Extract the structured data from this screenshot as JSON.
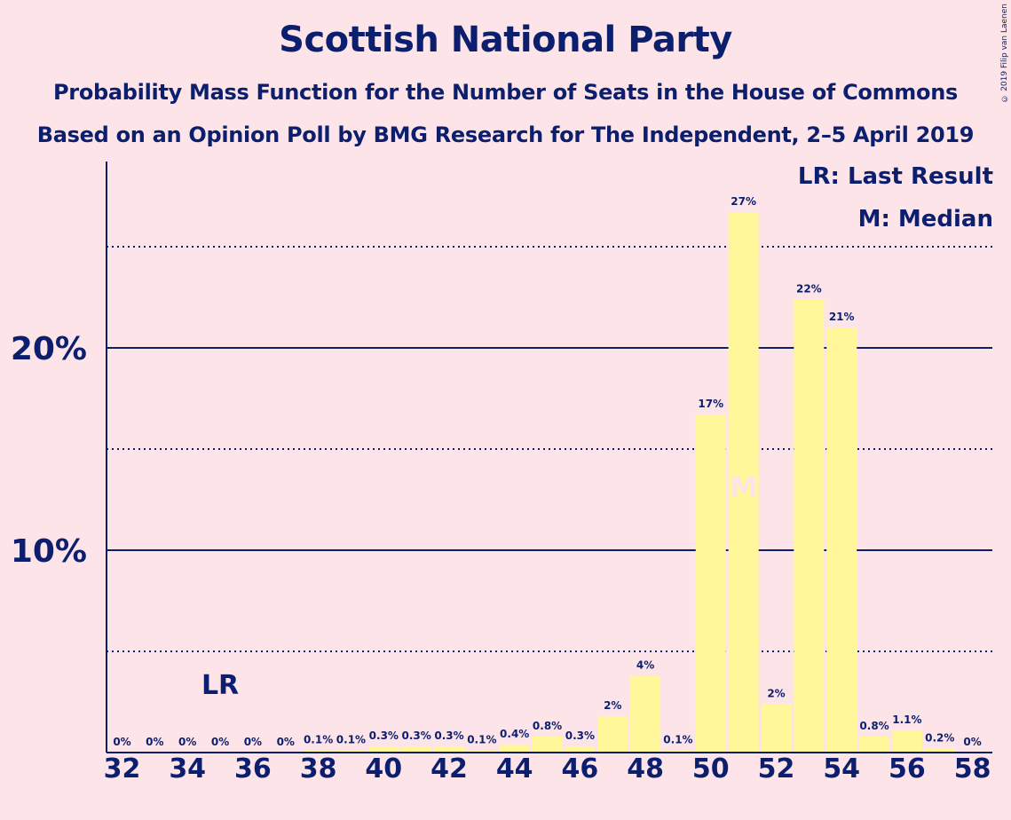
{
  "chart_data": {
    "type": "bar",
    "title": "Scottish National Party",
    "subtitle": "Probability Mass Function for the Number of Seats in the House of Commons",
    "subtitle2": "Based on an Opinion Poll by BMG Research for The Independent, 2–5 April 2019",
    "copyright": "© 2019 Filip van Laenen",
    "legend": [
      "LR: Last Result",
      "M: Median"
    ],
    "last_result": 35,
    "last_result_label": "LR",
    "median": 51,
    "median_label": "M",
    "x": [
      32,
      33,
      34,
      35,
      36,
      37,
      38,
      39,
      40,
      41,
      42,
      43,
      44,
      45,
      46,
      47,
      48,
      49,
      50,
      51,
      52,
      53,
      54,
      55,
      56,
      57,
      58
    ],
    "values": [
      0,
      0,
      0,
      0,
      0,
      0,
      0.1,
      0.1,
      0.3,
      0.3,
      0.3,
      0.1,
      0.4,
      0.8,
      0.3,
      1.8,
      3.8,
      0.1,
      16.7,
      26.7,
      2.4,
      22.4,
      21.0,
      0.8,
      1.1,
      0.2,
      0
    ],
    "data_labels": [
      "0%",
      "0%",
      "0%",
      "0%",
      "0%",
      "0%",
      "0.1%",
      "0.1%",
      "0.3%",
      "0.3%",
      "0.3%",
      "0.1%",
      "0.4%",
      "0.8%",
      "0.3%",
      "2%",
      "4%",
      "0.1%",
      "17%",
      "27%",
      "2%",
      "22%",
      "21%",
      "0.8%",
      "1.1%",
      "0.2%",
      "0%"
    ],
    "x_tick_labels": [
      "32",
      "34",
      "36",
      "38",
      "40",
      "42",
      "44",
      "46",
      "48",
      "50",
      "52",
      "54",
      "56",
      "58"
    ],
    "y_tick_labels": [
      "10%",
      "20%"
    ],
    "ylim": [
      0,
      29.2
    ],
    "grid": "solid lines at 10% and 20%, dotted lines at 5%, 15%, 25%",
    "colors": {
      "background": "#fde4e8",
      "bar": "#fff799",
      "text": "#0b1f6e",
      "median_label": "#fde4e8"
    }
  }
}
